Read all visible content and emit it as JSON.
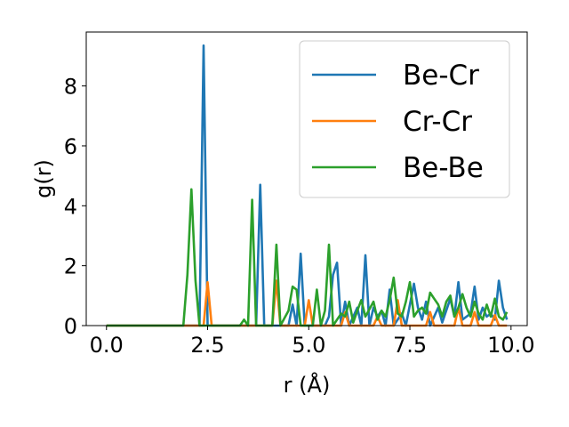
{
  "chart_data": {
    "type": "line",
    "title": "",
    "xlabel": "r (Å)",
    "ylabel": "g(r)",
    "xlim": [
      -0.5,
      10.4
    ],
    "ylim": [
      0,
      9.8
    ],
    "xticks": [
      "0.0",
      "2.5",
      "5.0",
      "7.5",
      "10.0"
    ],
    "xtick_values": [
      0,
      2.5,
      5,
      7.5,
      10
    ],
    "yticks": [
      "0",
      "2",
      "4",
      "6",
      "8"
    ],
    "ytick_values": [
      0,
      2,
      4,
      6,
      8
    ],
    "grid": false,
    "legend_position": "top-right",
    "series": [
      {
        "name": "Be-Cr",
        "color": "#1f77b4",
        "points": [
          [
            0.0,
            0
          ],
          [
            2.3,
            0
          ],
          [
            2.4,
            9.35
          ],
          [
            2.5,
            0
          ],
          [
            3.7,
            0
          ],
          [
            3.8,
            4.7
          ],
          [
            3.9,
            0
          ],
          [
            4.5,
            0
          ],
          [
            4.6,
            0.7
          ],
          [
            4.7,
            0
          ],
          [
            4.8,
            2.4
          ],
          [
            4.9,
            0
          ],
          [
            5.4,
            0
          ],
          [
            5.5,
            0.3
          ],
          [
            5.6,
            1.7
          ],
          [
            5.7,
            2.1
          ],
          [
            5.8,
            0
          ],
          [
            5.9,
            0.8
          ],
          [
            6.0,
            0
          ],
          [
            6.2,
            0.6
          ],
          [
            6.3,
            0
          ],
          [
            6.4,
            2.35
          ],
          [
            6.5,
            0
          ],
          [
            6.6,
            0.6
          ],
          [
            6.7,
            0.3
          ],
          [
            6.8,
            0.5
          ],
          [
            6.9,
            0
          ],
          [
            7.0,
            1.2
          ],
          [
            7.1,
            0
          ],
          [
            7.3,
            0.4
          ],
          [
            7.4,
            0
          ],
          [
            7.6,
            1.4
          ],
          [
            7.7,
            0.6
          ],
          [
            7.8,
            0.2
          ],
          [
            7.9,
            0.8
          ],
          [
            8.0,
            0
          ],
          [
            8.2,
            0.6
          ],
          [
            8.3,
            0.1
          ],
          [
            8.5,
            0.9
          ],
          [
            8.6,
            0.3
          ],
          [
            8.7,
            1.45
          ],
          [
            8.8,
            0.2
          ],
          [
            9.0,
            0.4
          ],
          [
            9.1,
            1.3
          ],
          [
            9.2,
            0.2
          ],
          [
            9.3,
            0.6
          ],
          [
            9.4,
            0.3
          ],
          [
            9.5,
            0.4
          ],
          [
            9.6,
            0.2
          ],
          [
            9.7,
            1.5
          ],
          [
            9.8,
            0.6
          ],
          [
            9.9,
            0.2
          ]
        ]
      },
      {
        "name": "Cr-Cr",
        "color": "#ff7f0e",
        "points": [
          [
            0.0,
            0
          ],
          [
            2.4,
            0
          ],
          [
            2.5,
            1.45
          ],
          [
            2.6,
            0
          ],
          [
            4.1,
            0
          ],
          [
            4.2,
            1.5
          ],
          [
            4.3,
            0
          ],
          [
            4.9,
            0
          ],
          [
            5.0,
            0.85
          ],
          [
            5.1,
            0
          ],
          [
            5.8,
            0
          ],
          [
            5.9,
            0.45
          ],
          [
            6.0,
            0
          ],
          [
            6.6,
            0
          ],
          [
            6.7,
            0.3
          ],
          [
            6.8,
            0
          ],
          [
            7.1,
            0
          ],
          [
            7.2,
            0.85
          ],
          [
            7.3,
            0
          ],
          [
            7.9,
            0
          ],
          [
            8.0,
            0.45
          ],
          [
            8.1,
            0
          ],
          [
            8.6,
            0
          ],
          [
            8.7,
            0.6
          ],
          [
            8.8,
            0
          ],
          [
            9.0,
            0
          ],
          [
            9.1,
            0.45
          ],
          [
            9.2,
            0
          ],
          [
            9.5,
            0
          ],
          [
            9.6,
            0.35
          ],
          [
            9.7,
            0
          ],
          [
            9.9,
            0
          ]
        ]
      },
      {
        "name": "Be-Be",
        "color": "#2ca02c",
        "points": [
          [
            0.0,
            0
          ],
          [
            1.9,
            0
          ],
          [
            2.0,
            1.7
          ],
          [
            2.1,
            4.55
          ],
          [
            2.2,
            1.5
          ],
          [
            2.3,
            0
          ],
          [
            3.3,
            0
          ],
          [
            3.4,
            0.2
          ],
          [
            3.5,
            0
          ],
          [
            3.6,
            4.2
          ],
          [
            3.7,
            0
          ],
          [
            4.1,
            0
          ],
          [
            4.2,
            2.7
          ],
          [
            4.3,
            0
          ],
          [
            4.5,
            0.5
          ],
          [
            4.6,
            1.3
          ],
          [
            4.7,
            1.2
          ],
          [
            4.8,
            0
          ],
          [
            5.1,
            0
          ],
          [
            5.2,
            1.2
          ],
          [
            5.3,
            0
          ],
          [
            5.4,
            0.5
          ],
          [
            5.5,
            2.7
          ],
          [
            5.6,
            0
          ],
          [
            5.8,
            0.4
          ],
          [
            5.9,
            0.3
          ],
          [
            6.0,
            0.8
          ],
          [
            6.1,
            0.1
          ],
          [
            6.2,
            0.5
          ],
          [
            6.3,
            0.85
          ],
          [
            6.4,
            0.3
          ],
          [
            6.6,
            0.8
          ],
          [
            6.7,
            0.2
          ],
          [
            6.8,
            0.5
          ],
          [
            6.9,
            0.3
          ],
          [
            7.0,
            0.85
          ],
          [
            7.1,
            1.6
          ],
          [
            7.2,
            0.4
          ],
          [
            7.3,
            0.3
          ],
          [
            7.4,
            0.8
          ],
          [
            7.5,
            1.45
          ],
          [
            7.6,
            0.3
          ],
          [
            7.7,
            0.5
          ],
          [
            7.8,
            0.6
          ],
          [
            7.9,
            0.4
          ],
          [
            8.0,
            1.1
          ],
          [
            8.1,
            0.9
          ],
          [
            8.2,
            0.7
          ],
          [
            8.3,
            0.3
          ],
          [
            8.4,
            0.8
          ],
          [
            8.5,
            1.0
          ],
          [
            8.6,
            0.3
          ],
          [
            8.7,
            0.6
          ],
          [
            8.8,
            1.05
          ],
          [
            8.9,
            0.6
          ],
          [
            9.0,
            0.3
          ],
          [
            9.1,
            0.8
          ],
          [
            9.2,
            0.4
          ],
          [
            9.3,
            0.2
          ],
          [
            9.4,
            0.7
          ],
          [
            9.5,
            0.3
          ],
          [
            9.6,
            0.9
          ],
          [
            9.7,
            0.3
          ],
          [
            9.8,
            0.2
          ],
          [
            9.9,
            0.45
          ]
        ]
      }
    ]
  }
}
